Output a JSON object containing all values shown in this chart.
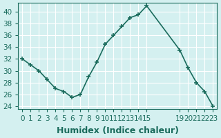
{
  "x": [
    0,
    1,
    2,
    3,
    4,
    5,
    6,
    7,
    8,
    9,
    10,
    11,
    12,
    13,
    14,
    15,
    19,
    20,
    21,
    22,
    23
  ],
  "y": [
    32,
    31,
    30,
    28.5,
    27,
    26.5,
    25.5,
    26,
    29,
    31.5,
    34.5,
    36,
    37.5,
    39,
    39.5,
    41,
    33.5,
    30.5,
    28,
    26.5,
    24
  ],
  "xlabel": "Humidex (Indice chaleur)",
  "xlim": [
    -0.5,
    23.5
  ],
  "ylim": [
    23.5,
    41.5
  ],
  "yticks": [
    24,
    26,
    28,
    30,
    32,
    34,
    36,
    38,
    40
  ],
  "xtick_positions": [
    0,
    1,
    2,
    3,
    4,
    5,
    6,
    7,
    8,
    9,
    10,
    11,
    12,
    13,
    14,
    15,
    19,
    20,
    21,
    22,
    23
  ],
  "xtick_labels": [
    "0",
    "1",
    "2",
    "3",
    "4",
    "5",
    "6",
    "7",
    "8",
    "9",
    "10",
    "11",
    "12",
    "13",
    "14",
    "15",
    "19",
    "20",
    "21",
    "22",
    "23"
  ],
  "line_color": "#1a6b5c",
  "marker": "+",
  "marker_size": 5,
  "line_width": 1.2,
  "bg_color": "#d4f0f0",
  "grid_color": "#ffffff",
  "axis_color": "#1a6b5c",
  "tick_label_color": "#1a6b5c",
  "xlabel_color": "#1a6b5c",
  "xlabel_fontsize": 9,
  "tick_fontsize": 7.5
}
